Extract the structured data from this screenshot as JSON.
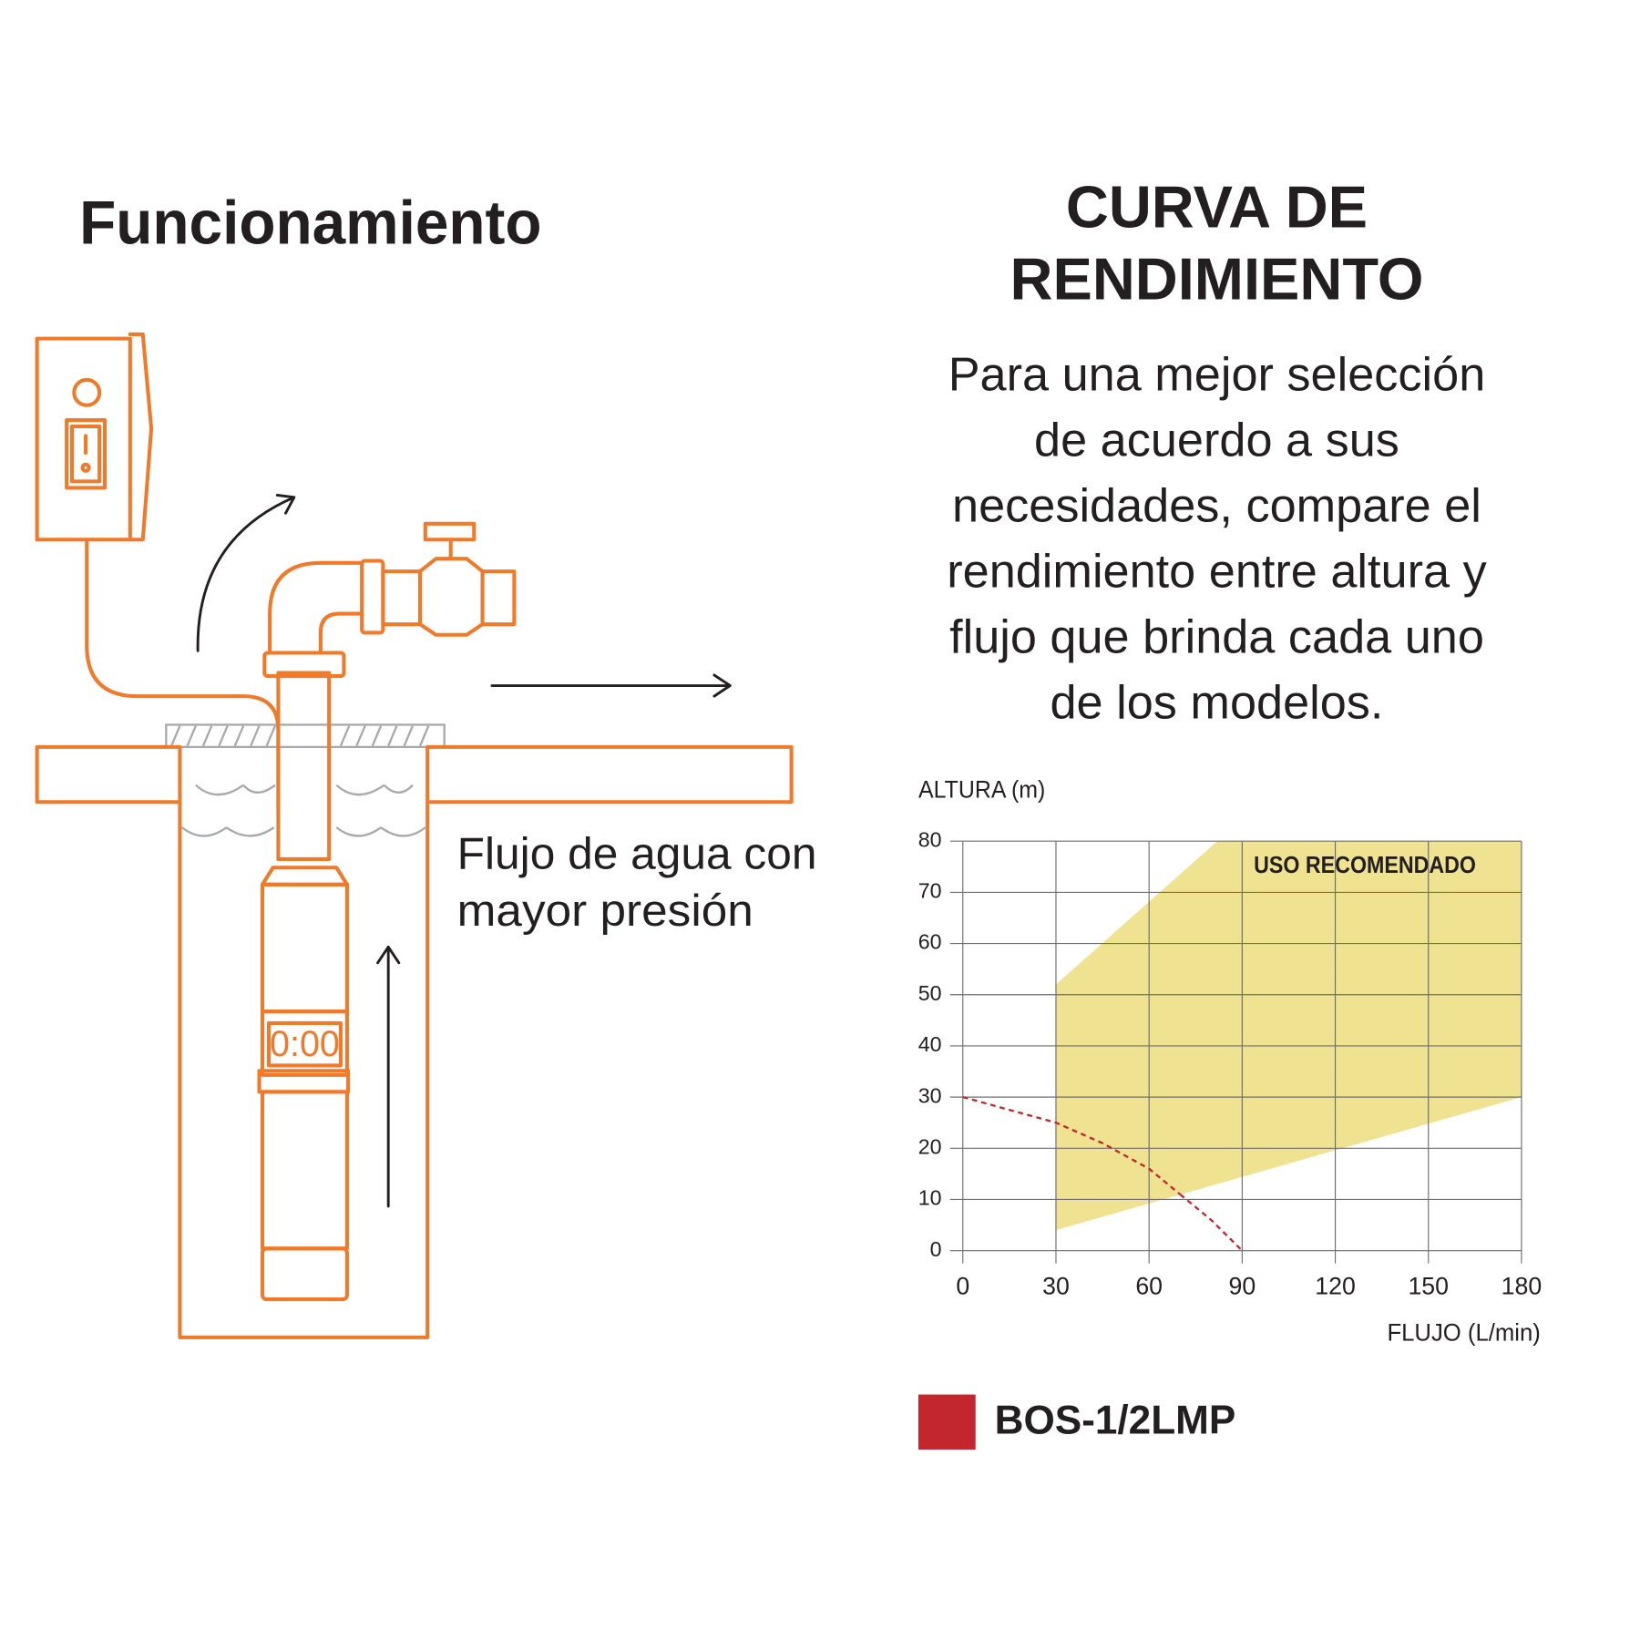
{
  "left": {
    "title": "Funcionamiento",
    "caption_lines": [
      "Flujo de agua con",
      "mayor presión"
    ]
  },
  "right": {
    "title_lines": [
      "CURVA DE",
      "RENDIMIENTO"
    ],
    "description_lines": [
      "Para una mejor selección",
      "de acuerdo a sus",
      "necesidades, compare el",
      "rendimiento entre altura y",
      "flujo que brinda cada uno",
      "de los modelos."
    ]
  },
  "chart_data": {
    "type": "line",
    "y_label": "ALTURA (m)",
    "x_label": "FLUJO (L/min)",
    "xlim": [
      0,
      180
    ],
    "xticks": [
      0,
      30,
      60,
      90,
      120,
      150,
      180
    ],
    "ylim": [
      0,
      80
    ],
    "yticks": [
      0,
      10,
      20,
      30,
      40,
      50,
      60,
      70,
      80
    ],
    "grid": true,
    "area": {
      "name": "USO RECOMENDADO",
      "color": "#efe391",
      "x": [
        30,
        82,
        180,
        180,
        30
      ],
      "y": [
        52,
        80,
        80,
        30,
        4
      ]
    },
    "series": [
      {
        "name": "BOS-1/2LMP",
        "color": "#c1272d",
        "solid_x": [
          30,
          70
        ],
        "x": [
          0,
          30,
          45,
          60,
          70,
          80,
          90
        ],
        "values": [
          30,
          25,
          21,
          16,
          11,
          6,
          0
        ]
      }
    ]
  }
}
